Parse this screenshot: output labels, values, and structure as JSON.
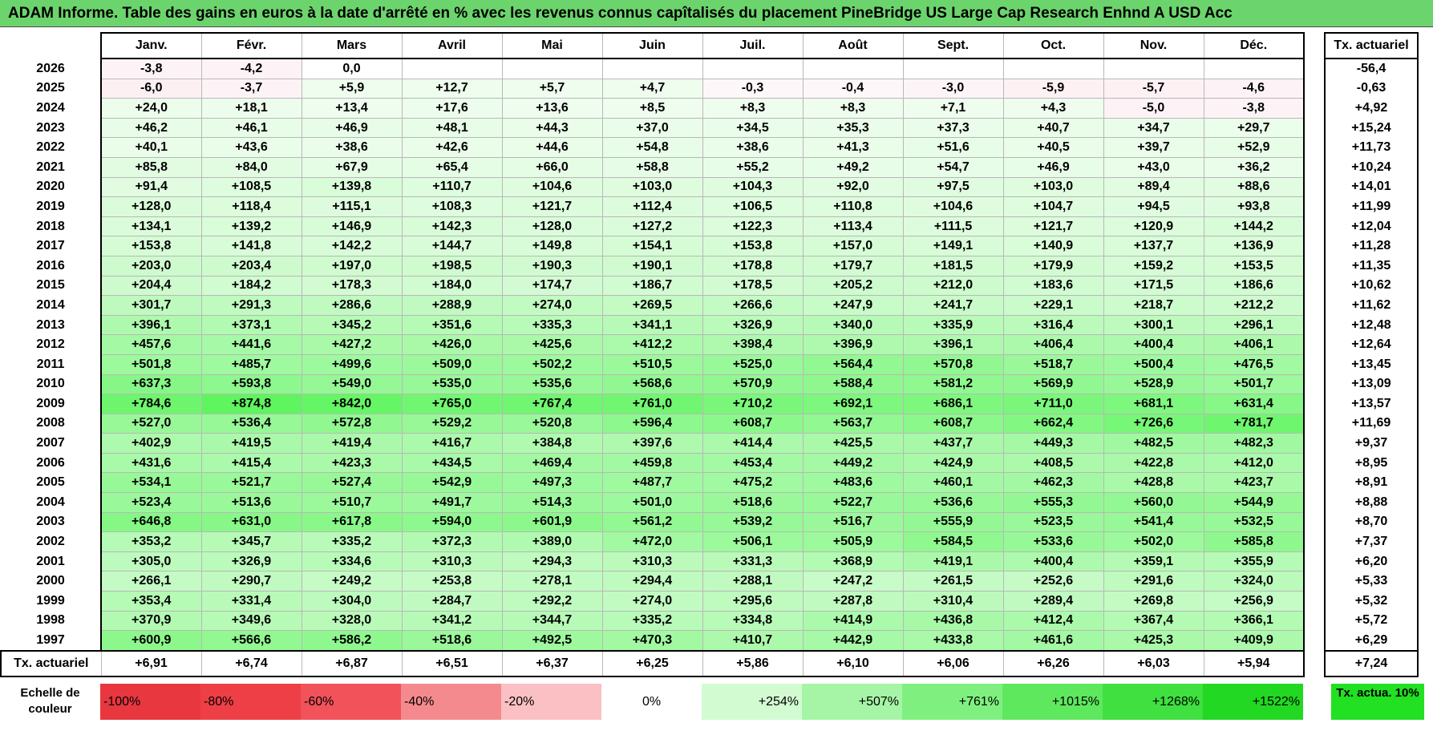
{
  "title": "ADAM Informe. Table des gains en euros à la date d'arrêté en % avec les revenus connus capîtalisés du placement PineBridge US Large Cap Research Enhnd A USD Acc",
  "months": [
    "Janv.",
    "Févr.",
    "Mars",
    "Avril",
    "Mai",
    "Juin",
    "Juil.",
    "Août",
    "Sept.",
    "Oct.",
    "Nov.",
    "Déc."
  ],
  "actuarial_header": "Tx. actuariel",
  "rows": [
    {
      "year": "2026",
      "values": [
        "-3,8",
        "-4,2",
        "0,0",
        "",
        "",
        "",
        "",
        "",
        "",
        "",
        "",
        ""
      ],
      "rate": "-56,4"
    },
    {
      "year": "2025",
      "values": [
        "-6,0",
        "-3,7",
        "+5,9",
        "+12,7",
        "+5,7",
        "+4,7",
        "-0,3",
        "-0,4",
        "-3,0",
        "-5,9",
        "-5,7",
        "-4,6"
      ],
      "rate": "-0,63"
    },
    {
      "year": "2024",
      "values": [
        "+24,0",
        "+18,1",
        "+13,4",
        "+17,6",
        "+13,6",
        "+8,5",
        "+8,3",
        "+8,3",
        "+7,1",
        "+4,3",
        "-5,0",
        "-3,8"
      ],
      "rate": "+4,92"
    },
    {
      "year": "2023",
      "values": [
        "+46,2",
        "+46,1",
        "+46,9",
        "+48,1",
        "+44,3",
        "+37,0",
        "+34,5",
        "+35,3",
        "+37,3",
        "+40,7",
        "+34,7",
        "+29,7"
      ],
      "rate": "+15,24"
    },
    {
      "year": "2022",
      "values": [
        "+40,1",
        "+43,6",
        "+38,6",
        "+42,6",
        "+44,6",
        "+54,8",
        "+38,6",
        "+41,3",
        "+51,6",
        "+40,5",
        "+39,7",
        "+52,9"
      ],
      "rate": "+11,73"
    },
    {
      "year": "2021",
      "values": [
        "+85,8",
        "+84,0",
        "+67,9",
        "+65,4",
        "+66,0",
        "+58,8",
        "+55,2",
        "+49,2",
        "+54,7",
        "+46,9",
        "+43,0",
        "+36,2"
      ],
      "rate": "+10,24"
    },
    {
      "year": "2020",
      "values": [
        "+91,4",
        "+108,5",
        "+139,8",
        "+110,7",
        "+104,6",
        "+103,0",
        "+104,3",
        "+92,0",
        "+97,5",
        "+103,0",
        "+89,4",
        "+88,6"
      ],
      "rate": "+14,01"
    },
    {
      "year": "2019",
      "values": [
        "+128,0",
        "+118,4",
        "+115,1",
        "+108,3",
        "+121,7",
        "+112,4",
        "+106,5",
        "+110,8",
        "+104,6",
        "+104,7",
        "+94,5",
        "+93,8"
      ],
      "rate": "+11,99"
    },
    {
      "year": "2018",
      "values": [
        "+134,1",
        "+139,2",
        "+146,9",
        "+142,3",
        "+128,0",
        "+127,2",
        "+122,3",
        "+113,4",
        "+111,5",
        "+121,7",
        "+120,9",
        "+144,2"
      ],
      "rate": "+12,04"
    },
    {
      "year": "2017",
      "values": [
        "+153,8",
        "+141,8",
        "+142,2",
        "+144,7",
        "+149,8",
        "+154,1",
        "+153,8",
        "+157,0",
        "+149,1",
        "+140,9",
        "+137,7",
        "+136,9"
      ],
      "rate": "+11,28"
    },
    {
      "year": "2016",
      "values": [
        "+203,0",
        "+203,4",
        "+197,0",
        "+198,5",
        "+190,3",
        "+190,1",
        "+178,8",
        "+179,7",
        "+181,5",
        "+179,9",
        "+159,2",
        "+153,5"
      ],
      "rate": "+11,35"
    },
    {
      "year": "2015",
      "values": [
        "+204,4",
        "+184,2",
        "+178,3",
        "+184,0",
        "+174,7",
        "+186,7",
        "+178,5",
        "+205,2",
        "+212,0",
        "+183,6",
        "+171,5",
        "+186,6"
      ],
      "rate": "+10,62"
    },
    {
      "year": "2014",
      "values": [
        "+301,7",
        "+291,3",
        "+286,6",
        "+288,9",
        "+274,0",
        "+269,5",
        "+266,6",
        "+247,9",
        "+241,7",
        "+229,1",
        "+218,7",
        "+212,2"
      ],
      "rate": "+11,62"
    },
    {
      "year": "2013",
      "values": [
        "+396,1",
        "+373,1",
        "+345,2",
        "+351,6",
        "+335,3",
        "+341,1",
        "+326,9",
        "+340,0",
        "+335,9",
        "+316,4",
        "+300,1",
        "+296,1"
      ],
      "rate": "+12,48"
    },
    {
      "year": "2012",
      "values": [
        "+457,6",
        "+441,6",
        "+427,2",
        "+426,0",
        "+425,6",
        "+412,2",
        "+398,4",
        "+396,9",
        "+396,1",
        "+406,4",
        "+400,4",
        "+406,1"
      ],
      "rate": "+12,64"
    },
    {
      "year": "2011",
      "values": [
        "+501,8",
        "+485,7",
        "+499,6",
        "+509,0",
        "+502,2",
        "+510,5",
        "+525,0",
        "+564,4",
        "+570,8",
        "+518,7",
        "+500,4",
        "+476,5"
      ],
      "rate": "+13,45"
    },
    {
      "year": "2010",
      "values": [
        "+637,3",
        "+593,8",
        "+549,0",
        "+535,0",
        "+535,6",
        "+568,6",
        "+570,9",
        "+588,4",
        "+581,2",
        "+569,9",
        "+528,9",
        "+501,7"
      ],
      "rate": "+13,09"
    },
    {
      "year": "2009",
      "values": [
        "+784,6",
        "+874,8",
        "+842,0",
        "+765,0",
        "+767,4",
        "+761,0",
        "+710,2",
        "+692,1",
        "+686,1",
        "+711,0",
        "+681,1",
        "+631,4"
      ],
      "rate": "+13,57"
    },
    {
      "year": "2008",
      "values": [
        "+527,0",
        "+536,4",
        "+572,8",
        "+529,2",
        "+520,8",
        "+596,4",
        "+608,7",
        "+563,7",
        "+608,7",
        "+662,4",
        "+726,6",
        "+781,7"
      ],
      "rate": "+11,69"
    },
    {
      "year": "2007",
      "values": [
        "+402,9",
        "+419,5",
        "+419,4",
        "+416,7",
        "+384,8",
        "+397,6",
        "+414,4",
        "+425,5",
        "+437,7",
        "+449,3",
        "+482,5",
        "+482,3"
      ],
      "rate": "+9,37"
    },
    {
      "year": "2006",
      "values": [
        "+431,6",
        "+415,4",
        "+423,3",
        "+434,5",
        "+469,4",
        "+459,8",
        "+453,4",
        "+449,2",
        "+424,9",
        "+408,5",
        "+422,8",
        "+412,0"
      ],
      "rate": "+8,95"
    },
    {
      "year": "2005",
      "values": [
        "+534,1",
        "+521,7",
        "+527,4",
        "+542,9",
        "+497,3",
        "+487,7",
        "+475,2",
        "+483,6",
        "+460,1",
        "+462,3",
        "+428,8",
        "+423,7"
      ],
      "rate": "+8,91"
    },
    {
      "year": "2004",
      "values": [
        "+523,4",
        "+513,6",
        "+510,7",
        "+491,7",
        "+514,3",
        "+501,0",
        "+518,6",
        "+522,7",
        "+536,6",
        "+555,3",
        "+560,0",
        "+544,9"
      ],
      "rate": "+8,88"
    },
    {
      "year": "2003",
      "values": [
        "+646,8",
        "+631,0",
        "+617,8",
        "+594,0",
        "+601,9",
        "+561,2",
        "+539,2",
        "+516,7",
        "+555,9",
        "+523,5",
        "+541,4",
        "+532,5"
      ],
      "rate": "+8,70"
    },
    {
      "year": "2002",
      "values": [
        "+353,2",
        "+345,7",
        "+335,2",
        "+372,3",
        "+389,0",
        "+472,0",
        "+506,1",
        "+505,9",
        "+584,5",
        "+533,6",
        "+502,0",
        "+585,8"
      ],
      "rate": "+7,37"
    },
    {
      "year": "2001",
      "values": [
        "+305,0",
        "+326,9",
        "+334,6",
        "+310,3",
        "+294,3",
        "+310,3",
        "+331,3",
        "+368,9",
        "+419,1",
        "+400,4",
        "+359,1",
        "+355,9"
      ],
      "rate": "+6,20"
    },
    {
      "year": "2000",
      "values": [
        "+266,1",
        "+290,7",
        "+249,2",
        "+253,8",
        "+278,1",
        "+294,4",
        "+288,1",
        "+247,2",
        "+261,5",
        "+252,6",
        "+291,6",
        "+324,0"
      ],
      "rate": "+5,33"
    },
    {
      "year": "1999",
      "values": [
        "+353,4",
        "+331,4",
        "+304,0",
        "+284,7",
        "+292,2",
        "+274,0",
        "+295,6",
        "+287,8",
        "+310,4",
        "+289,4",
        "+269,8",
        "+256,9"
      ],
      "rate": "+5,32"
    },
    {
      "year": "1998",
      "values": [
        "+370,9",
        "+349,6",
        "+328,0",
        "+341,2",
        "+344,7",
        "+335,2",
        "+334,8",
        "+414,9",
        "+436,8",
        "+412,4",
        "+367,4",
        "+366,1"
      ],
      "rate": "+5,72"
    },
    {
      "year": "1997",
      "values": [
        "+600,9",
        "+566,6",
        "+586,2",
        "+518,6",
        "+492,5",
        "+470,3",
        "+410,7",
        "+442,9",
        "+433,8",
        "+461,6",
        "+425,3",
        "+409,9"
      ],
      "rate": "+6,29"
    }
  ],
  "footer": {
    "label": "Tx. actuariel",
    "values": [
      "+6,91",
      "+6,74",
      "+6,87",
      "+6,51",
      "+6,37",
      "+6,25",
      "+5,86",
      "+6,10",
      "+6,06",
      "+6,26",
      "+6,03",
      "+5,94"
    ],
    "total": "+7,24"
  },
  "scale": {
    "label": "Echelle de couleur",
    "items": [
      {
        "label": "-100%",
        "color": "#e8373f",
        "align": "left"
      },
      {
        "label": "-80%",
        "color": "#ee3f47",
        "align": "left"
      },
      {
        "label": "-60%",
        "color": "#f2525a",
        "align": "left"
      },
      {
        "label": "-40%",
        "color": "#f58a8e",
        "align": "left"
      },
      {
        "label": "-20%",
        "color": "#fac0c3",
        "align": "left"
      },
      {
        "label": "0%",
        "color": "#ffffff",
        "align": "center"
      },
      {
        "label": "+254%",
        "color": "#d2fbd2",
        "align": "right"
      },
      {
        "label": "+507%",
        "color": "#a6f5a6",
        "align": "right"
      },
      {
        "label": "+761%",
        "color": "#7ff07f",
        "align": "right"
      },
      {
        "label": "+1015%",
        "color": "#5ee85e",
        "align": "right"
      },
      {
        "label": "+1268%",
        "color": "#3fe03f",
        "align": "right"
      },
      {
        "label": "+1522%",
        "color": "#22d822",
        "align": "right"
      }
    ],
    "rate_label": "Tx. actua. 10%",
    "rate_color": "#22e022"
  }
}
